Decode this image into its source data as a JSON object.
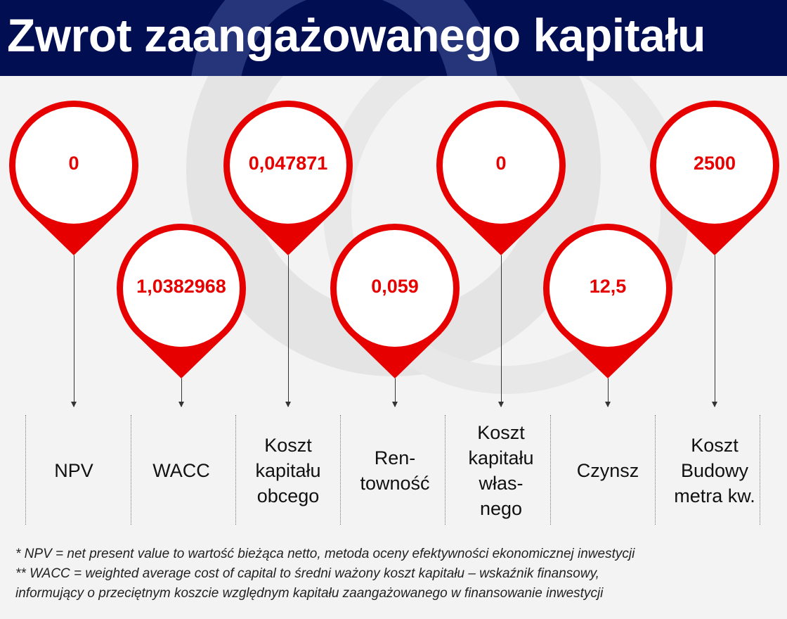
{
  "title": "Zwrot zaangażowanego kapitału",
  "colors": {
    "header": "#020e52",
    "accent": "#e60000"
  },
  "items": [
    {
      "value": "0",
      "label": "NPV"
    },
    {
      "value": "1,0382968",
      "label": "WACC"
    },
    {
      "value": "0,047871",
      "label": "Koszt kapitału obcego"
    },
    {
      "value": "0,059",
      "label": "Ren-\ntowność"
    },
    {
      "value": "0",
      "label": "Koszt kapitału włas-\nnego"
    },
    {
      "value": "12,5",
      "label": "Czynsz"
    },
    {
      "value": "2500",
      "label": "Koszt Budowy metra kw."
    }
  ],
  "footnotes": [
    "* NPV = net present value to wartość bieżąca netto, metoda oceny efektywności ekonomicznej inwestycji",
    "** WACC = weighted average cost of capital to średni ważony koszt kapitału – wskaźnik finansowy,",
    "informujący o przeciętnym koszcie względnym kapitału zaangażowanego w finansowanie inwestycji"
  ]
}
